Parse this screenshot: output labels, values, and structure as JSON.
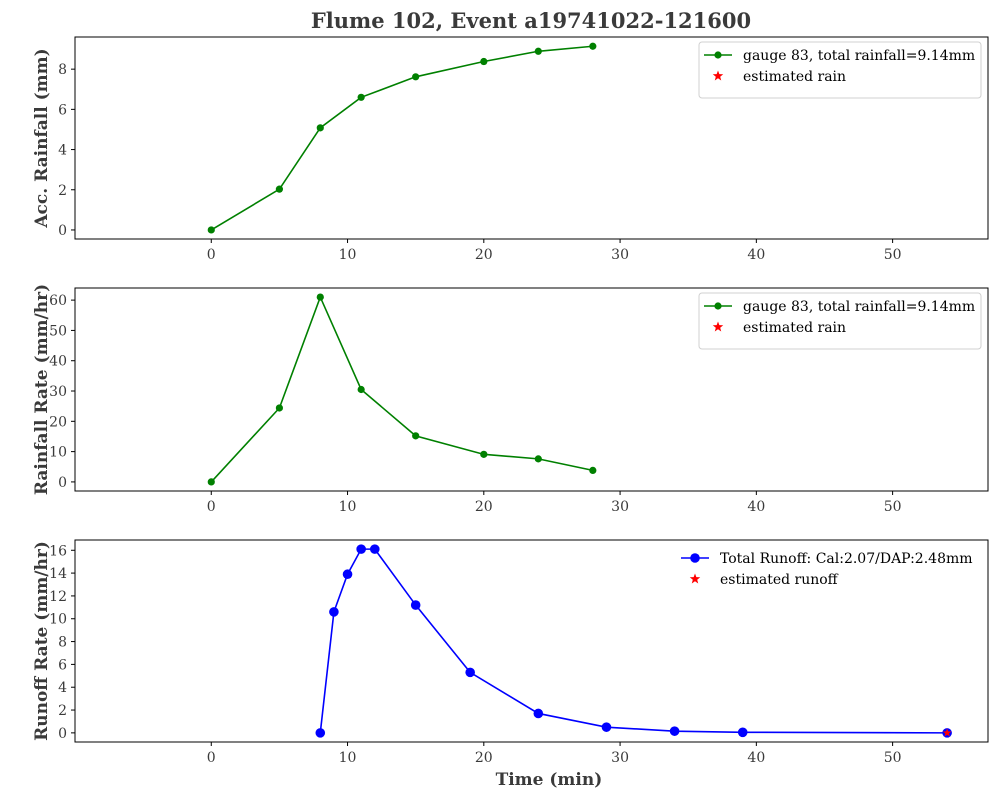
{
  "figure_title": "Flume 102, Event a19741022-121600",
  "colors": {
    "rain": "#008000",
    "runoff": "#0000ff",
    "estimated": "#ff0000",
    "text": "#3a3a3a"
  },
  "chart_data": [
    {
      "type": "line",
      "ylabel": "Acc. Rainfall (mm)",
      "xlabel": "",
      "xlim": [
        -10,
        57
      ],
      "ylim": [
        -0.45,
        9.6
      ],
      "xticks": [
        0,
        10,
        20,
        30,
        40,
        50
      ],
      "yticks": [
        0,
        2,
        4,
        6,
        8
      ],
      "legend": "top-right",
      "series": [
        {
          "name": "gauge 83, total rainfall=9.14mm",
          "color": "#008000",
          "marker": "circle",
          "x": [
            0,
            5,
            8,
            11,
            15,
            20,
            24,
            28
          ],
          "y": [
            0,
            2.03,
            5.08,
            6.6,
            7.62,
            8.38,
            8.89,
            9.14
          ]
        },
        {
          "name": "estimated rain",
          "color": "#ff0000",
          "marker": "star",
          "x": [],
          "y": []
        }
      ]
    },
    {
      "type": "line",
      "ylabel": "Rainfall Rate (mm/hr)",
      "xlabel": "",
      "xlim": [
        -10,
        57
      ],
      "ylim": [
        -3,
        64
      ],
      "xticks": [
        0,
        10,
        20,
        30,
        40,
        50
      ],
      "yticks": [
        0,
        10,
        20,
        30,
        40,
        50,
        60
      ],
      "legend": "top-right",
      "series": [
        {
          "name": "gauge 83, total rainfall=9.14mm",
          "color": "#008000",
          "marker": "circle",
          "x": [
            0,
            5,
            8,
            11,
            15,
            20,
            24,
            28
          ],
          "y": [
            0,
            24.4,
            61.0,
            30.5,
            15.2,
            9.1,
            7.6,
            3.8
          ]
        },
        {
          "name": "estimated rain",
          "color": "#ff0000",
          "marker": "star",
          "x": [],
          "y": []
        }
      ]
    },
    {
      "type": "line",
      "ylabel": "Runoff Rate (mm/hr)",
      "xlabel": "Time (min)",
      "xlim": [
        -10,
        57
      ],
      "ylim": [
        -0.8,
        16.9
      ],
      "xticks": [
        0,
        10,
        20,
        30,
        40,
        50
      ],
      "yticks": [
        0,
        2,
        4,
        6,
        8,
        10,
        12,
        14,
        16
      ],
      "legend": "top-right",
      "series": [
        {
          "name": "Total Runoff: Cal:2.07/DAP:2.48mm",
          "color": "#0000ff",
          "marker": "circle",
          "x": [
            8,
            9,
            10,
            11,
            12,
            15,
            19,
            24,
            29,
            34,
            39,
            54
          ],
          "y": [
            0,
            10.6,
            13.9,
            16.1,
            16.1,
            11.2,
            5.3,
            1.7,
            0.5,
            0.15,
            0.05,
            0
          ]
        },
        {
          "name": "estimated runoff",
          "color": "#ff0000",
          "marker": "star",
          "x": [
            54
          ],
          "y": [
            0
          ]
        }
      ]
    }
  ]
}
